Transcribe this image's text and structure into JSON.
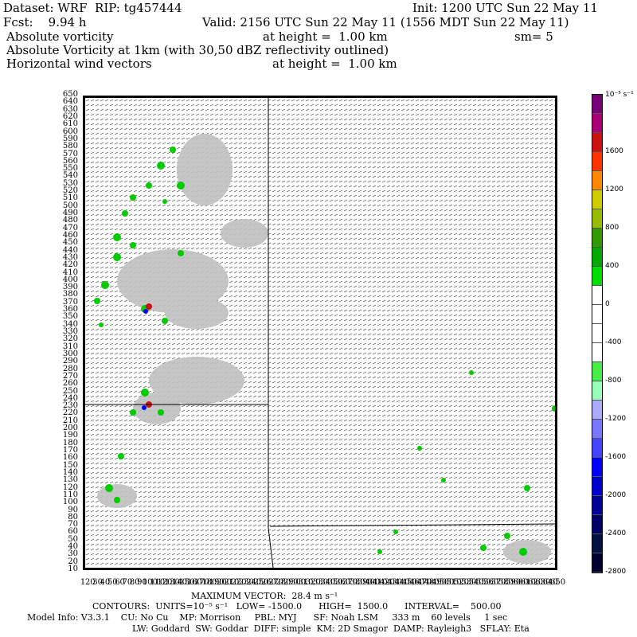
{
  "header": {
    "line1_left": "Dataset: WRF  RIP: tg457444",
    "line1_right": "Init: 1200 UTC Sun 22 May 11",
    "line2_left": "Fcst:    9.94 h",
    "line2_right": "Valid: 2156 UTC Sun 22 May 11 (1556 MDT Sun 22 May 11)",
    "line3_left": "Absolute vorticity",
    "line3_mid": "at height =  1.00 km",
    "line3_right": "sm= 5",
    "line4": "Absolute Vorticity at 1km (with 30,50 dBZ reflectivity outlined)",
    "line5_left": "Horizontal wind vectors",
    "line5_mid": "at height =  1.00 km"
  },
  "y_axis_labels": [
    "650",
    "640",
    "630",
    "620",
    "610",
    "600",
    "590",
    "580",
    "570",
    "560",
    "550",
    "540",
    "530",
    "520",
    "510",
    "500",
    "490",
    "480",
    "470",
    "460",
    "450",
    "440",
    "430",
    "420",
    "410",
    "400",
    "390",
    "380",
    "370",
    "360",
    "350",
    "340",
    "330",
    "320",
    "310",
    "300",
    "290",
    "280",
    "270",
    "260",
    "250",
    "240",
    "230",
    "220",
    "210",
    "200",
    "190",
    "180",
    "170",
    "160",
    "150",
    "140",
    "130",
    "120",
    "110",
    "100",
    "90",
    "80",
    "70",
    "60",
    "50",
    "40",
    "30",
    "20",
    "10"
  ],
  "x_axis_labels": [
    "1",
    "20",
    "30",
    "40",
    "50",
    "60",
    "70",
    "80",
    "90",
    "100",
    "110",
    "120",
    "130",
    "140",
    "150",
    "160",
    "170",
    "180",
    "190",
    "200",
    "210",
    "220",
    "230",
    "240",
    "250",
    "260",
    "270",
    "280",
    "290",
    "300",
    "310",
    "320",
    "330",
    "340",
    "350",
    "360",
    "370",
    "380",
    "390",
    "400",
    "410",
    "420",
    "430",
    "440",
    "450",
    "460",
    "470",
    "480",
    "490",
    "500",
    "510",
    "520",
    "530",
    "540",
    "550",
    "560",
    "570",
    "580",
    "590",
    "600",
    "610",
    "620",
    "630",
    "640",
    "650"
  ],
  "colorbar": {
    "units_label": "10⁻⁵ s⁻¹",
    "colors": [
      "#770077",
      "#aa0077",
      "#cc1111",
      "#ff3300",
      "#ff8800",
      "#cccc00",
      "#99bb00",
      "#339900",
      "#00aa00",
      "#00dd00",
      "#ffffff",
      "#ffffff",
      "#ffffff",
      "#ffffff",
      "#44ee44",
      "#99ffbb",
      "#aaaaff",
      "#7777ff",
      "#4444ff",
      "#0000ff",
      "#0000cc",
      "#000099",
      "#000066",
      "#001144",
      "#000033"
    ],
    "tick_labels": [
      "1600",
      "1200",
      "800",
      "400",
      "0",
      "-400",
      "-800",
      "-1200",
      "-1600",
      "-2000",
      "-2400",
      "-2800"
    ]
  },
  "footer": {
    "max_vector": "MAXIMUM VECTOR:  28.4 m s⁻¹",
    "contours": "CONTOURS:  UNITS=10⁻⁵ s⁻¹   LOW= -1500.0      HIGH=  1500.0      INTERVAL=    500.00",
    "model_info": "Model Info: V3.3.1    CU: No Cu    MP: Morrison     PBL: MYJ      SF: Noah LSM     333 m    60 levels     1 sec",
    "model_info2": "LW: Goddard  SW: Goddar  DIFF: simple  KM: 2D Smagor  DAMP: Rayleigh3   SFLAY: Eta"
  },
  "colors": {
    "reflectivity": "#c0c0c0",
    "vorticity_positive": "#00cc00",
    "vector": "#000000"
  }
}
